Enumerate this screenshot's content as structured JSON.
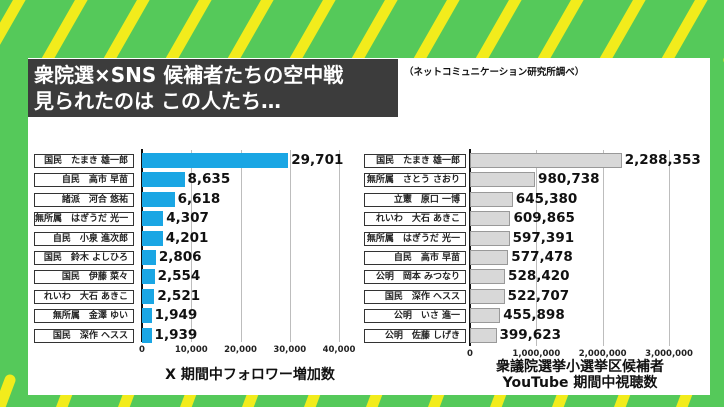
{
  "title_lines": [
    "衆院選×SNS 候補者たちの空中戦",
    "見られたのは この人たち…"
  ],
  "source": "（ネットコミュニケーション研究所調べ）",
  "colors": {
    "background": "#55c95a",
    "stripes": "#f2ec1c",
    "x_bar": "#1aa6e4",
    "youtube_bar": "#d8d8d8",
    "title_box": "#3c3c3c"
  },
  "chart_data": [
    {
      "type": "bar",
      "orientation": "horizontal",
      "xlabel": "X 期間中フォロワー増加数",
      "xlim": [
        0,
        40000
      ],
      "ticks": [
        "0",
        "10,000",
        "20,000",
        "30,000",
        "40,000"
      ],
      "tick_values": [
        0,
        10000,
        20000,
        30000,
        40000
      ],
      "grid": true,
      "categories": [
        "国民　たまき 雄一郎",
        "自民　高市 早苗",
        "諸派　河合 悠祐",
        "無所属　はぎうだ 光一",
        "自民　小泉 進次郎",
        "国民　鈴木 よしひろ",
        "国民　伊藤 菜々",
        "れいわ　大石 あきこ",
        "無所属　金澤 ゆい",
        "国民　深作 ヘスス"
      ],
      "values": [
        29701,
        8635,
        6618,
        4307,
        4201,
        2806,
        2554,
        2521,
        1949,
        1939
      ],
      "value_labels": [
        "29,701",
        "8,635",
        "6,618",
        "4,307",
        "4,201",
        "2,806",
        "2,554",
        "2,521",
        "1,949",
        "1,939"
      ]
    },
    {
      "type": "bar",
      "orientation": "horizontal",
      "xlabel": "衆議院選挙小選挙区候補者\nYouTube 期間中視聴数",
      "xlabel_lines": [
        "衆議院選挙小選挙区候補者",
        "YouTube 期間中視聴数"
      ],
      "xlim": [
        0,
        3000000
      ],
      "ticks": [
        "0",
        "1,000,000",
        "2,000,000",
        "3,000,000"
      ],
      "tick_values": [
        0,
        1000000,
        2000000,
        3000000
      ],
      "grid": true,
      "categories": [
        "国民　たまき 雄一郎",
        "無所属　さとう さおり",
        "立憲　原口 一博",
        "れいわ　大石 あきこ",
        "無所属　はぎうだ 光一",
        "自民　高市 早苗",
        "公明　岡本 みつなり",
        "国民　深作 ヘスス",
        "公明　いさ 進一",
        "公明　佐藤 しげき"
      ],
      "values": [
        2288353,
        980738,
        645380,
        609865,
        597391,
        577478,
        528420,
        522707,
        455898,
        399623
      ],
      "value_labels": [
        "2,288,353",
        "980,738",
        "645,380",
        "609,865",
        "597,391",
        "577,478",
        "528,420",
        "522,707",
        "455,898",
        "399,623"
      ]
    }
  ]
}
